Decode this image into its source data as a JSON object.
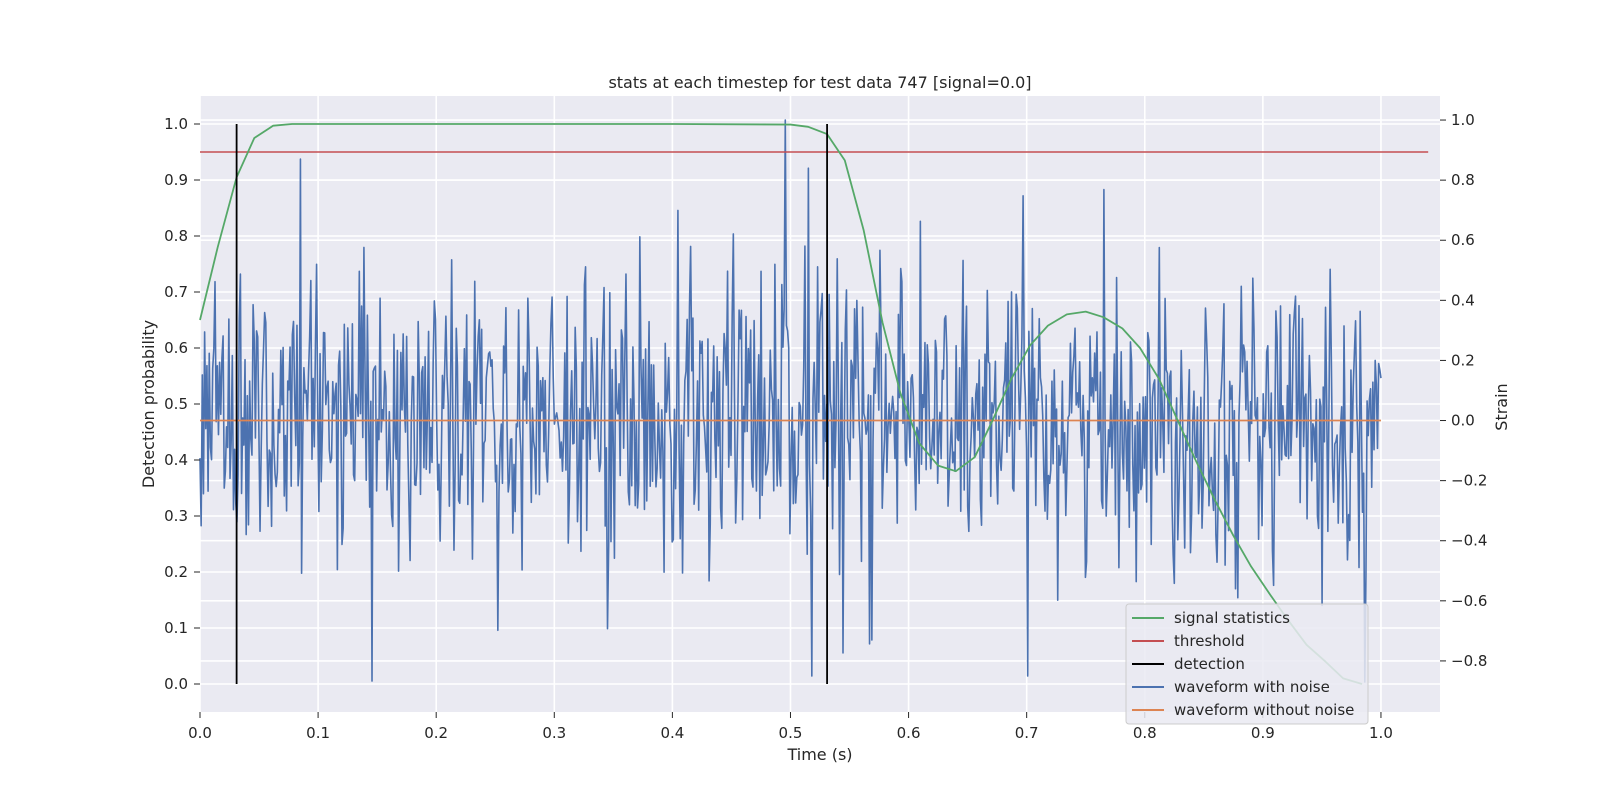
{
  "chart_data": {
    "type": "line",
    "title": "stats at each timestep for test data 747 [signal=0.0]",
    "xlabel": "Time (s)",
    "ylabel": "Detection probability",
    "y2label": "Strain",
    "xlim": [
      0.0,
      1.05
    ],
    "ylim": [
      -0.05,
      1.05
    ],
    "y2lim": [
      -0.97,
      1.08
    ],
    "xticks": [
      "0.0",
      "0.1",
      "0.2",
      "0.3",
      "0.4",
      "0.5",
      "0.6",
      "0.7",
      "0.8",
      "0.9",
      "1.0"
    ],
    "yticks": [
      "0.0",
      "0.1",
      "0.2",
      "0.3",
      "0.4",
      "0.5",
      "0.6",
      "0.7",
      "0.8",
      "0.9",
      "1.0"
    ],
    "y2ticks": [
      "−0.8",
      "−0.6",
      "−0.4",
      "−0.2",
      "0.0",
      "0.2",
      "0.4",
      "0.6",
      "0.8",
      "1.0"
    ],
    "grid": true,
    "legend_position": "lower-right",
    "legend": [
      {
        "label": "signal statistics",
        "color": "#55a868"
      },
      {
        "label": "threshold",
        "color": "#c44e52"
      },
      {
        "label": "detection",
        "color": "#000000"
      },
      {
        "label": "waveform with noise",
        "color": "#4c72b0"
      },
      {
        "label": "waveform without noise",
        "color": "#dd8452"
      }
    ],
    "series": [
      {
        "name": "signal statistics",
        "axis": "left",
        "color": "#55a868",
        "x": [
          0.0,
          0.015,
          0.031,
          0.046,
          0.062,
          0.078,
          0.1,
          0.2,
          0.3,
          0.4,
          0.5,
          0.515,
          0.531,
          0.546,
          0.562,
          0.578,
          0.593,
          0.609,
          0.625,
          0.64,
          0.656,
          0.671,
          0.687,
          0.703,
          0.718,
          0.734,
          0.75,
          0.765,
          0.781,
          0.796,
          0.812,
          0.828,
          0.843,
          0.859,
          0.875,
          0.89,
          0.906,
          0.921,
          0.937,
          0.953,
          0.968,
          0.984
        ],
        "y": [
          0.65,
          0.78,
          0.905,
          0.975,
          0.997,
          1.0,
          1.0,
          1.0,
          1.0,
          1.0,
          0.999,
          0.995,
          0.982,
          0.935,
          0.81,
          0.645,
          0.52,
          0.43,
          0.39,
          0.38,
          0.405,
          0.47,
          0.545,
          0.605,
          0.64,
          0.66,
          0.665,
          0.655,
          0.635,
          0.6,
          0.545,
          0.47,
          0.4,
          0.33,
          0.265,
          0.21,
          0.16,
          0.115,
          0.07,
          0.04,
          0.01,
          0.0
        ]
      },
      {
        "name": "threshold",
        "axis": "left",
        "color": "#c44e52",
        "x": [
          0.0,
          1.04
        ],
        "y": [
          0.95,
          0.95
        ]
      },
      {
        "name": "waveform without noise",
        "axis": "right",
        "color": "#dd8452",
        "x": [
          0.0,
          1.0
        ],
        "y": [
          0.0,
          0.0
        ]
      }
    ],
    "detections": {
      "name": "detection",
      "color": "#000000",
      "x": [
        0.031,
        0.531
      ],
      "y_range": [
        0.0,
        1.0
      ]
    },
    "noisy_waveform": {
      "name": "waveform with noise",
      "axis": "right",
      "color": "#4c72b0",
      "x_range": [
        0.0,
        1.0
      ],
      "n_points": 1024,
      "amplitude_std": 0.23,
      "y_min": -0.87,
      "y_max": 1.0,
      "peaks": [
        {
          "x": 0.496,
          "y": 1.0
        },
        {
          "x": 0.085,
          "y": 0.87
        },
        {
          "x": 0.515,
          "y": 0.84
        },
        {
          "x": 0.986,
          "y": -0.87
        },
        {
          "x": 0.518,
          "y": -0.85
        },
        {
          "x": 0.701,
          "y": -0.85
        }
      ]
    }
  }
}
